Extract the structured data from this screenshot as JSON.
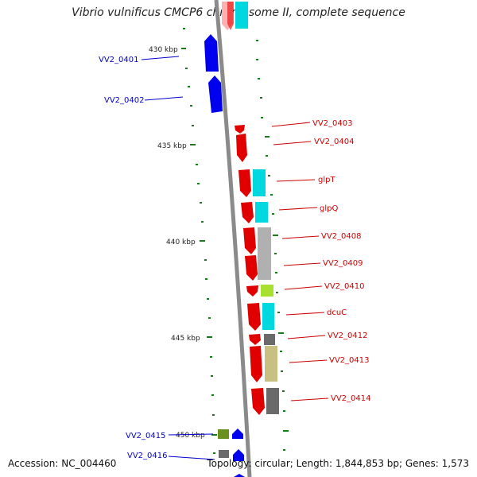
{
  "title": "Vibrio vulnificus CMCP6 chromosome II, complete sequence",
  "accession": "Accession: NC_004460",
  "summary": "Topology: circular; Length: 1,844,853 bp; Genes: 1,573",
  "colors": {
    "backbone": "#8a8a8a",
    "forward_gene": "#e00000",
    "reverse_gene": "#0000ee",
    "forward_label": "#cc0000",
    "reverse_label": "#0000cc",
    "tick": "#1a7a1a",
    "cyan": "#00d8e0",
    "gray": "#b0b0b0",
    "dark_gray": "#6a6a6a",
    "khaki": "#c8c080",
    "yellow_green": "#a8e030",
    "olive": "#6a9020",
    "pink": "#ffb0b0"
  },
  "ruler_labels": [
    "430 kbp",
    "435 kbp",
    "440 kbp",
    "445 kbp",
    "450 kbp"
  ],
  "genes_right": [
    "VV2_0403",
    "VV2_0404",
    "glpT",
    "glpQ",
    "VV2_0408",
    "VV2_0409",
    "VV2_0410",
    "dcuC",
    "VV2_0412",
    "VV2_0413",
    "VV2_0414"
  ],
  "genes_left": [
    "VV2_0401",
    "VV2_0402",
    "VV2_0415",
    "VV2_0416"
  ]
}
